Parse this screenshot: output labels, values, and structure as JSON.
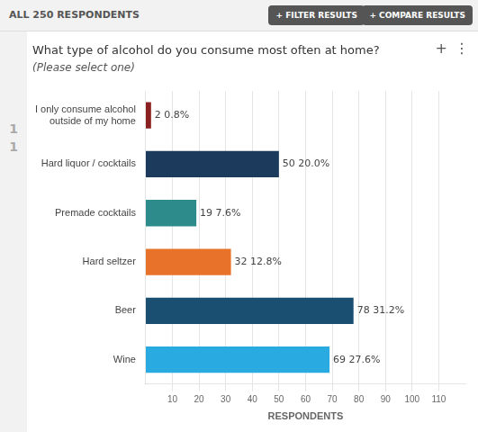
{
  "chart_data": {
    "type": "bar",
    "orientation": "horizontal",
    "title": "What type of alcohol do you consume most often at home?",
    "subtitle": "(Please select one)",
    "xlabel": "RESPONDENTS",
    "categories": [
      "Wine",
      "Beer",
      "Hard seltzer",
      "Premade cocktails",
      "Hard liquor / cocktails",
      "I only consume alcohol\noutside of my home"
    ],
    "values": [
      69,
      78,
      32,
      19,
      50,
      2
    ],
    "value_labels": [
      "69 27.6%",
      "78 31.2%",
      "32 12.8%",
      "19 7.6%",
      "50 20.0%",
      "2 0.8%"
    ],
    "colors": [
      "#29ABE2",
      "#1B4F72",
      "#E8722A",
      "#2E8B8B",
      "#1B3A5C",
      "#8B2020"
    ],
    "xlim": [
      0,
      120
    ],
    "xticks": [
      10,
      20,
      30,
      40,
      50,
      60,
      70,
      80,
      90,
      100,
      110
    ],
    "grid": true,
    "data_labels": true,
    "annotations": [
      "ALL 250 RESPONDENTS",
      "+ FILTER RESULTS",
      "+ COMPARE RESULTS",
      "1",
      "1",
      "+",
      "⋮"
    ]
  }
}
